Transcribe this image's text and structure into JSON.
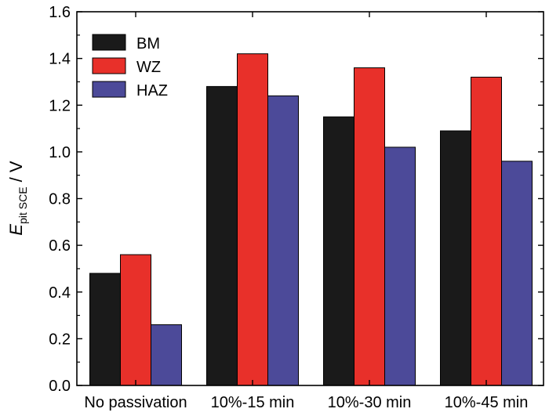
{
  "chart_data": {
    "type": "bar",
    "title": "",
    "xlabel": "",
    "ylabel": {
      "symbol": "E",
      "subscript": "pit SCE",
      "unit_suffix": " / V"
    },
    "ylim": [
      0.0,
      1.6
    ],
    "yticks": [
      "0.0",
      "0.2",
      "0.4",
      "0.6",
      "0.8",
      "1.0",
      "1.2",
      "1.4",
      "1.6"
    ],
    "categories": [
      "No passivation",
      "10%-15 min",
      "10%-30 min",
      "10%-45 min"
    ],
    "series": [
      {
        "name": "BM",
        "color": "#1a1a1a",
        "values": [
          0.48,
          1.28,
          1.15,
          1.09
        ]
      },
      {
        "name": "WZ",
        "color": "#e8302a",
        "values": [
          0.56,
          1.42,
          1.36,
          1.32
        ]
      },
      {
        "name": "HAZ",
        "color": "#4c4a99",
        "values": [
          0.26,
          1.24,
          1.02,
          0.96
        ]
      }
    ],
    "legend": {
      "position": "top-left"
    },
    "grid": false
  }
}
